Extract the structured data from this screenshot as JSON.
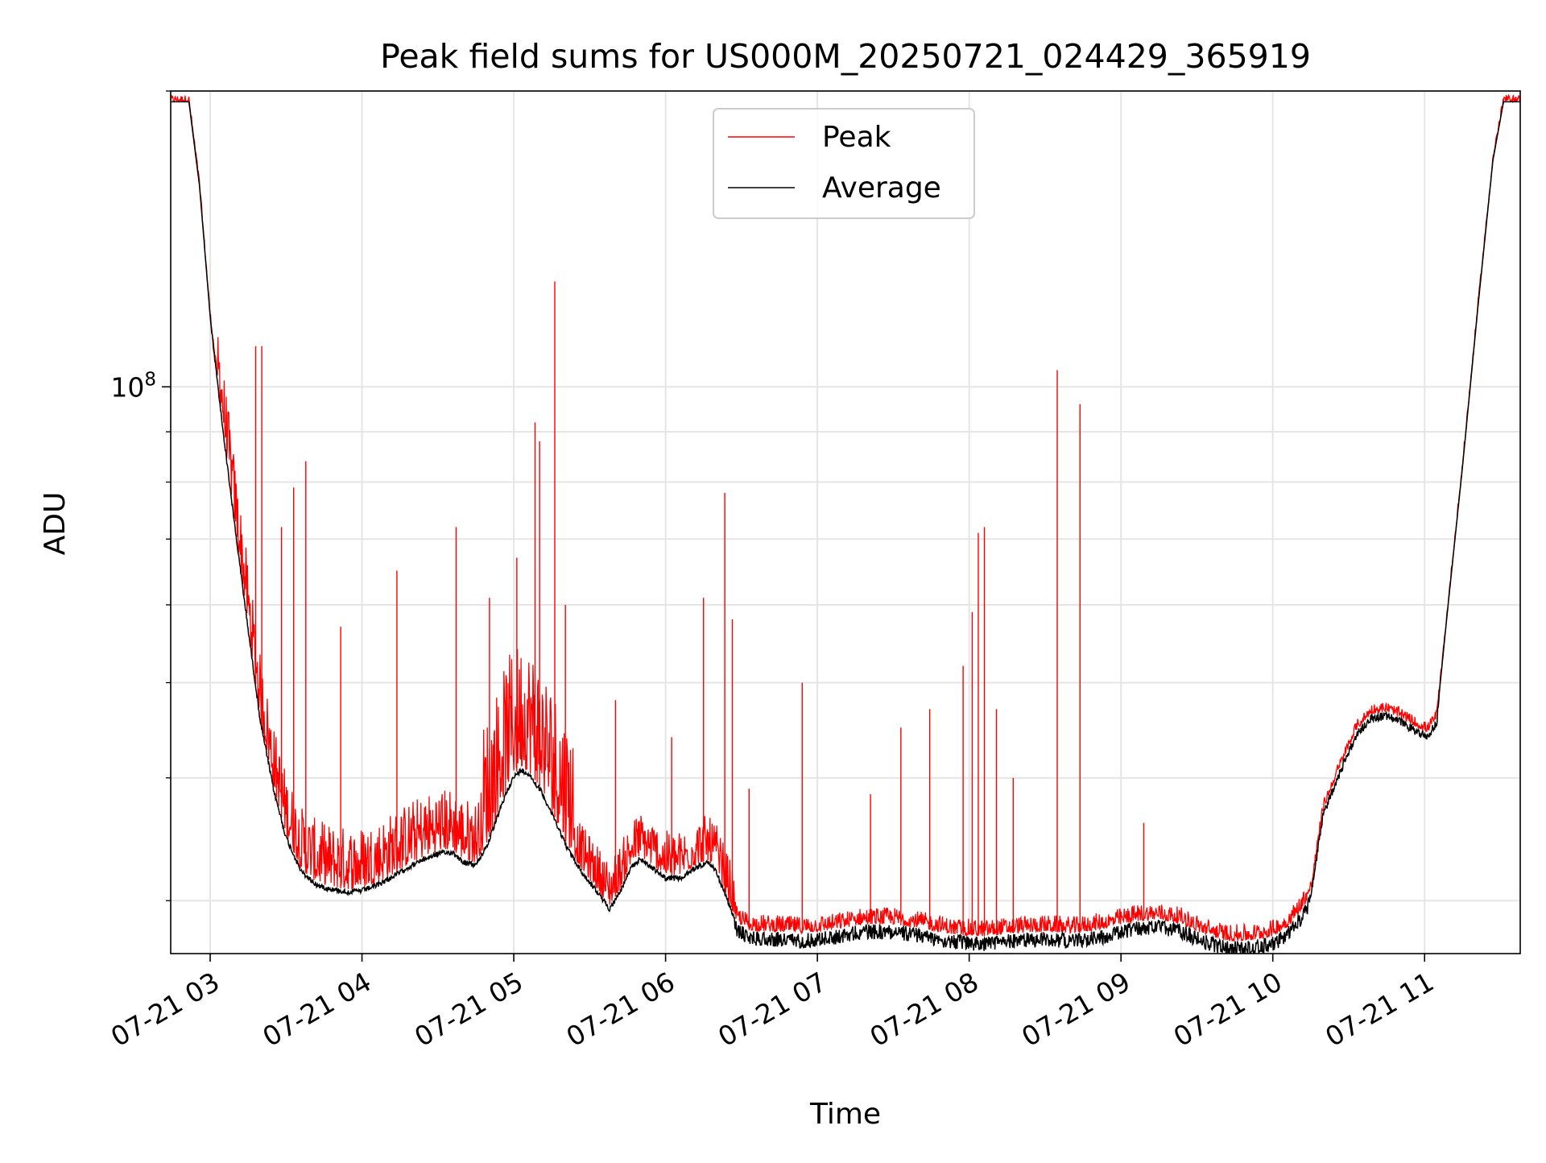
{
  "chart_data": {
    "type": "line",
    "title": "Peak field sums for US000M_20250721_024429_365919",
    "xlabel": "Time",
    "ylabel": "ADU",
    "yscale": "log",
    "x_units": "hours on 2025-07-21",
    "xlim": [
      2.74,
      11.63
    ],
    "ylim": [
      26500000,
      200000000
    ],
    "x_ticks": [
      3,
      4,
      5,
      6,
      7,
      8,
      9,
      10,
      11
    ],
    "x_tick_labels": [
      "07-21 03",
      "07-21 04",
      "07-21 05",
      "07-21 06",
      "07-21 07",
      "07-21 08",
      "07-21 09",
      "07-21 10",
      "07-21 11"
    ],
    "y_major_ticks": [
      100000000
    ],
    "y_major_tick_labels": [
      {
        "base": "10",
        "exp": "8"
      }
    ],
    "y_minor_ticks": [
      30000000,
      40000000,
      50000000,
      60000000,
      70000000,
      80000000,
      90000000,
      200000000
    ],
    "grid": true,
    "legend_position": "upper center",
    "colors": {
      "peak": "#ff0000",
      "average": "#000000",
      "grid": "#e5e5e5",
      "legend_border": "#cccccc"
    },
    "series": [
      {
        "name": "Average",
        "color": "#000000",
        "points": [
          [
            2.74,
            195000000
          ],
          [
            2.86,
            195000000
          ],
          [
            2.93,
            160000000
          ],
          [
            3.0,
            118000000
          ],
          [
            3.08,
            92000000
          ],
          [
            3.17,
            71000000
          ],
          [
            3.25,
            57000000
          ],
          [
            3.33,
            46000000
          ],
          [
            3.42,
            39000000
          ],
          [
            3.5,
            35000000
          ],
          [
            3.6,
            32300000
          ],
          [
            3.7,
            31300000
          ],
          [
            3.8,
            31000000
          ],
          [
            3.9,
            30800000
          ],
          [
            4.0,
            30900000
          ],
          [
            4.1,
            31300000
          ],
          [
            4.2,
            31900000
          ],
          [
            4.3,
            32600000
          ],
          [
            4.4,
            33200000
          ],
          [
            4.5,
            33700000
          ],
          [
            4.6,
            33800000
          ],
          [
            4.67,
            33000000
          ],
          [
            4.75,
            32800000
          ],
          [
            4.83,
            34500000
          ],
          [
            4.9,
            37000000
          ],
          [
            4.96,
            39200000
          ],
          [
            5.0,
            40300000
          ],
          [
            5.05,
            41000000
          ],
          [
            5.1,
            40600000
          ],
          [
            5.18,
            39000000
          ],
          [
            5.27,
            36500000
          ],
          [
            5.35,
            34200000
          ],
          [
            5.45,
            32200000
          ],
          [
            5.55,
            30800000
          ],
          [
            5.63,
            29600000
          ],
          [
            5.7,
            30800000
          ],
          [
            5.77,
            32500000
          ],
          [
            5.83,
            33300000
          ],
          [
            5.9,
            32700000
          ],
          [
            6.0,
            31800000
          ],
          [
            6.1,
            31800000
          ],
          [
            6.2,
            32600000
          ],
          [
            6.27,
            33000000
          ],
          [
            6.33,
            32400000
          ],
          [
            6.4,
            30400000
          ],
          [
            6.47,
            28500000
          ],
          [
            6.55,
            28000000
          ],
          [
            6.7,
            27900000
          ],
          [
            6.9,
            27800000
          ],
          [
            7.1,
            28000000
          ],
          [
            7.3,
            28400000
          ],
          [
            7.5,
            28400000
          ],
          [
            7.7,
            28100000
          ],
          [
            7.9,
            27700000
          ],
          [
            8.1,
            27600000
          ],
          [
            8.3,
            27800000
          ],
          [
            8.5,
            27900000
          ],
          [
            8.7,
            27800000
          ],
          [
            8.9,
            28100000
          ],
          [
            9.1,
            28600000
          ],
          [
            9.25,
            28700000
          ],
          [
            9.4,
            28400000
          ],
          [
            9.55,
            27700000
          ],
          [
            9.7,
            27300000
          ],
          [
            9.85,
            27300000
          ],
          [
            10.0,
            27600000
          ],
          [
            10.1,
            28200000
          ],
          [
            10.18,
            29200000
          ],
          [
            10.25,
            30500000
          ],
          [
            10.33,
            37000000
          ],
          [
            10.43,
            40500000
          ],
          [
            10.55,
            44700000
          ],
          [
            10.65,
            46500000
          ],
          [
            10.75,
            46700000
          ],
          [
            10.85,
            46000000
          ],
          [
            10.95,
            45000000
          ],
          [
            11.02,
            44500000
          ],
          [
            11.08,
            46000000
          ],
          [
            11.15,
            59000000
          ],
          [
            11.25,
            83000000
          ],
          [
            11.35,
            120000000
          ],
          [
            11.45,
            170000000
          ],
          [
            11.52,
            195000000
          ],
          [
            11.63,
            195000000
          ]
        ]
      },
      {
        "name": "Peak",
        "color": "#ff0000",
        "spikes": [
          [
            3.3,
            110000000
          ],
          [
            3.34,
            110000000
          ],
          [
            3.47,
            72000000
          ],
          [
            3.55,
            79000000
          ],
          [
            3.63,
            84000000
          ],
          [
            3.86,
            57000000
          ],
          [
            4.23,
            65000000
          ],
          [
            4.62,
            72000000
          ],
          [
            4.84,
            61000000
          ],
          [
            5.02,
            67000000
          ],
          [
            5.14,
            92000000
          ],
          [
            5.17,
            88000000
          ],
          [
            5.27,
            128000000
          ],
          [
            5.34,
            60000000
          ],
          [
            5.67,
            48000000
          ],
          [
            6.04,
            44000000
          ],
          [
            6.25,
            61000000
          ],
          [
            6.39,
            78000000
          ],
          [
            6.44,
            58000000
          ],
          [
            6.55,
            39000000
          ],
          [
            6.9,
            50000000
          ],
          [
            7.35,
            38500000
          ],
          [
            7.55,
            45000000
          ],
          [
            7.74,
            47000000
          ],
          [
            7.96,
            52000000
          ],
          [
            8.02,
            59000000
          ],
          [
            8.06,
            71000000
          ],
          [
            8.1,
            72000000
          ],
          [
            8.18,
            47000000
          ],
          [
            8.29,
            40000000
          ],
          [
            8.58,
            104000000
          ],
          [
            8.73,
            96000000
          ],
          [
            9.15,
            36000000
          ],
          [
            10.63,
            46500000
          ],
          [
            10.82,
            45500000
          ]
        ]
      }
    ]
  }
}
